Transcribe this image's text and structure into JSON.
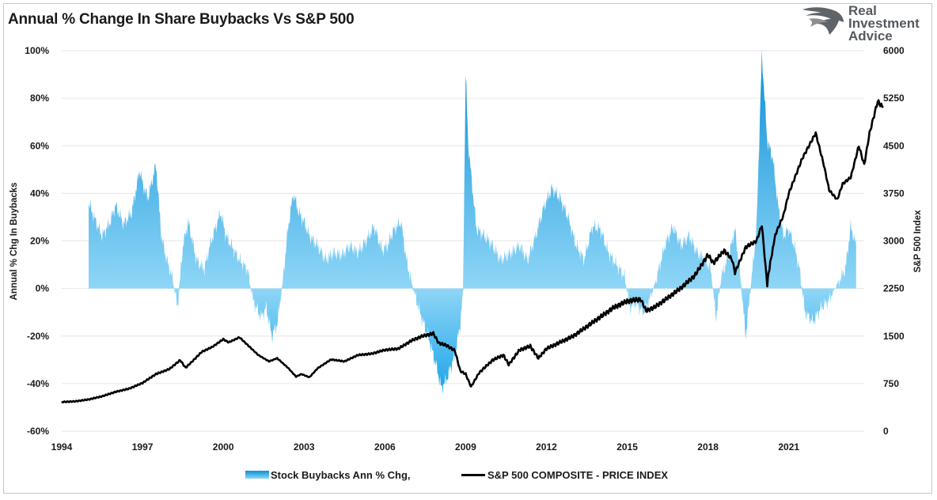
{
  "title": "Annual % Change In Share Buybacks Vs S&P 500",
  "logo": {
    "line1": "Real",
    "line2": "Investment",
    "line3": "Advice"
  },
  "legend": {
    "buybacks": "Stock Buybacks Ann % Chg,",
    "spx": "S&P 500 COMPOSITE - PRICE INDEX"
  },
  "colors": {
    "area_top": "#0a8fd6",
    "area_bottom": "#8fd6f7",
    "line": "#000000",
    "grid": "#e6e6e6"
  },
  "chart_data": {
    "type": "area",
    "ylabel": "Annual % Chg In Buybacks",
    "y2label": "S&P 500 Index",
    "xlim": [
      1994,
      2023.8
    ],
    "ylim": [
      -60,
      100
    ],
    "y2lim": [
      0,
      6000
    ],
    "x_ticks": [
      "1994",
      "1997",
      "2000",
      "2003",
      "2006",
      "2009",
      "2012",
      "2015",
      "2018",
      "2021"
    ],
    "y_ticks": [
      "-60%",
      "-40%",
      "-20%",
      "0%",
      "20%",
      "40%",
      "60%",
      "80%",
      "100%"
    ],
    "y2_ticks": [
      "0",
      "750",
      "1500",
      "2250",
      "3000",
      "3750",
      "4500",
      "5250",
      "6000"
    ],
    "grid": "horizontal",
    "legend_position": "bottom",
    "series": [
      {
        "name": "Stock Buybacks Ann % Chg,",
        "kind": "area",
        "axis": "left",
        "x": [
          1995.0,
          1995.2,
          1995.5,
          1995.8,
          1996.0,
          1996.3,
          1996.6,
          1996.9,
          1997.0,
          1997.2,
          1997.5,
          1997.7,
          1997.9,
          1998.1,
          1998.3,
          1998.5,
          1998.7,
          1999.0,
          1999.3,
          1999.5,
          1999.7,
          1999.9,
          2000.1,
          2000.3,
          2000.6,
          2000.9,
          2001.1,
          2001.4,
          2001.6,
          2001.8,
          2002.0,
          2002.2,
          2002.4,
          2002.6,
          2002.8,
          2003.0,
          2003.2,
          2003.5,
          2003.8,
          2004.1,
          2004.4,
          2004.7,
          2005.0,
          2005.3,
          2005.6,
          2005.9,
          2006.1,
          2006.3,
          2006.6,
          2006.8,
          2007.0,
          2007.3,
          2007.6,
          2007.9,
          2008.1,
          2008.3,
          2008.6,
          2008.8,
          2008.9,
          2009.0,
          2009.1,
          2009.4,
          2009.7,
          2010.0,
          2010.3,
          2010.7,
          2011.0,
          2011.3,
          2011.6,
          2011.9,
          2012.2,
          2012.5,
          2012.8,
          2013.1,
          2013.4,
          2013.7,
          2014.0,
          2014.3,
          2014.6,
          2014.9,
          2015.1,
          2015.3,
          2015.6,
          2015.9,
          2016.1,
          2016.4,
          2016.7,
          2017.0,
          2017.3,
          2017.6,
          2017.9,
          2018.1,
          2018.3,
          2018.5,
          2018.8,
          2019.0,
          2019.2,
          2019.4,
          2019.6,
          2019.8,
          2020.0,
          2020.2,
          2020.4,
          2020.6,
          2020.8,
          2021.0,
          2021.2,
          2021.4,
          2021.6,
          2021.9,
          2022.2,
          2022.5,
          2022.8,
          2023.1,
          2023.3,
          2023.5
        ],
        "values": [
          36,
          30,
          22,
          28,
          35,
          27,
          32,
          50,
          44,
          38,
          52,
          22,
          12,
          5,
          -8,
          18,
          28,
          12,
          8,
          18,
          25,
          32,
          22,
          18,
          12,
          8,
          -5,
          -12,
          -8,
          -20,
          -15,
          2,
          25,
          40,
          32,
          28,
          22,
          18,
          12,
          15,
          14,
          18,
          15,
          20,
          26,
          16,
          18,
          24,
          28,
          12,
          2,
          -10,
          -20,
          -32,
          -42,
          -38,
          -28,
          -15,
          -2,
          90,
          60,
          25,
          22,
          18,
          12,
          15,
          18,
          12,
          22,
          34,
          42,
          38,
          30,
          18,
          12,
          26,
          25,
          15,
          10,
          5,
          -8,
          -6,
          -10,
          -3,
          5,
          18,
          26,
          18,
          22,
          15,
          12,
          8,
          -12,
          5,
          15,
          25,
          5,
          -20,
          2,
          25,
          98,
          62,
          55,
          35,
          22,
          25,
          18,
          8,
          -10,
          -14,
          -8,
          -5,
          2,
          8,
          26,
          18
        ]
      },
      {
        "name": "S&P 500 COMPOSITE - PRICE INDEX",
        "kind": "line",
        "axis": "right",
        "x": [
          1994.0,
          1994.5,
          1995.0,
          1995.5,
          1996.0,
          1996.5,
          1997.0,
          1997.5,
          1998.0,
          1998.4,
          1998.6,
          1998.8,
          1999.2,
          1999.6,
          2000.0,
          2000.2,
          2000.6,
          2001.0,
          2001.3,
          2001.7,
          2002.0,
          2002.4,
          2002.7,
          2002.9,
          2003.2,
          2003.5,
          2004.0,
          2004.5,
          2005.0,
          2005.5,
          2006.0,
          2006.5,
          2007.0,
          2007.4,
          2007.8,
          2008.0,
          2008.3,
          2008.6,
          2008.8,
          2009.0,
          2009.2,
          2009.5,
          2010.0,
          2010.4,
          2010.6,
          2011.0,
          2011.4,
          2011.7,
          2012.0,
          2012.5,
          2013.0,
          2013.5,
          2014.0,
          2014.5,
          2015.0,
          2015.5,
          2015.7,
          2016.0,
          2016.5,
          2017.0,
          2017.5,
          2018.0,
          2018.2,
          2018.6,
          2018.9,
          2019.0,
          2019.4,
          2019.8,
          2020.0,
          2020.2,
          2020.25,
          2020.5,
          2020.8,
          2021.0,
          2021.5,
          2022.0,
          2022.3,
          2022.5,
          2022.8,
          2023.0,
          2023.3,
          2023.6,
          2023.8,
          2024.0,
          2024.3,
          2024.5
        ],
        "values": [
          460,
          470,
          500,
          550,
          620,
          670,
          760,
          900,
          980,
          1120,
          1000,
          1080,
          1250,
          1330,
          1450,
          1400,
          1480,
          1320,
          1200,
          1100,
          1150,
          1000,
          860,
          900,
          850,
          990,
          1130,
          1100,
          1200,
          1220,
          1280,
          1300,
          1430,
          1500,
          1540,
          1390,
          1350,
          1270,
          950,
          900,
          700,
          920,
          1120,
          1200,
          1050,
          1280,
          1340,
          1150,
          1300,
          1400,
          1500,
          1650,
          1800,
          1950,
          2050,
          2080,
          1900,
          1950,
          2100,
          2260,
          2450,
          2780,
          2650,
          2850,
          2700,
          2500,
          2900,
          3000,
          3250,
          2300,
          2500,
          3100,
          3400,
          3750,
          4300,
          4700,
          4200,
          3800,
          3650,
          3900,
          4000,
          4500,
          4200,
          4700,
          5200,
          5100
        ]
      }
    ]
  }
}
